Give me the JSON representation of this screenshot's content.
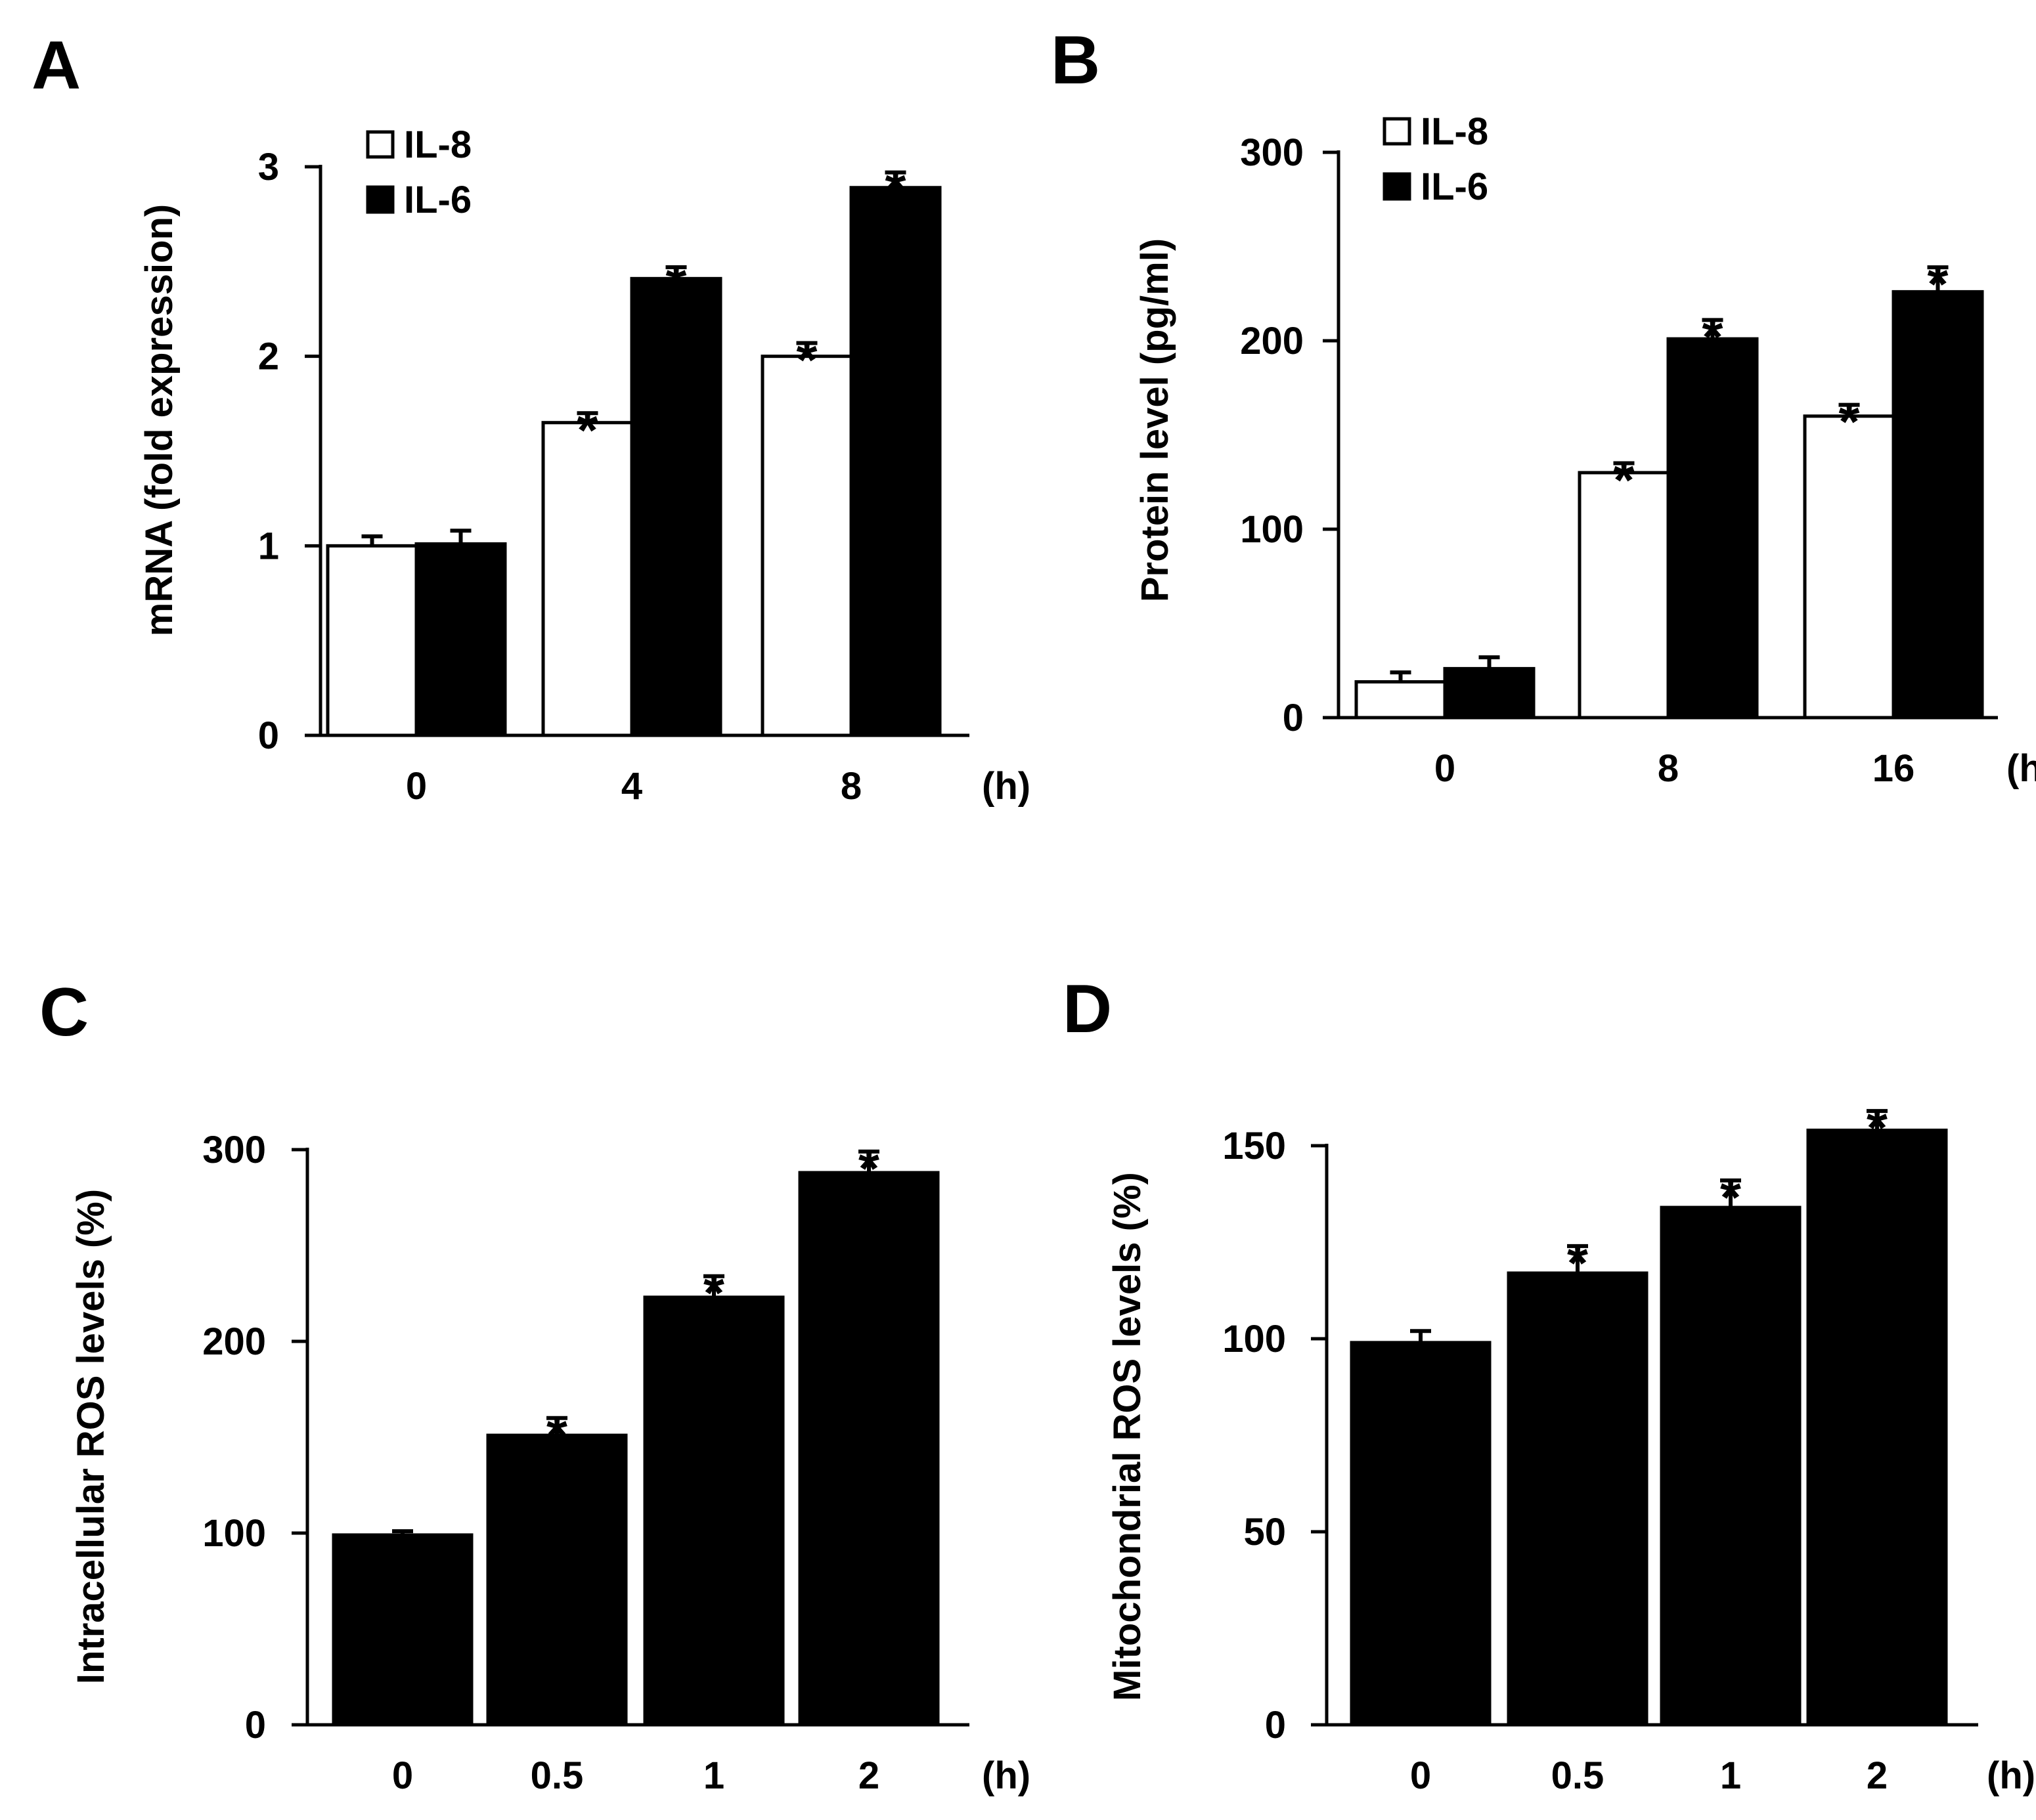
{
  "colors": {
    "series_open": "#ffffff",
    "series_filled": "#000000",
    "axis": "#000000"
  },
  "chart_data": [
    {
      "panel": "A",
      "type": "bar",
      "ylabel": "mRNA (fold expression)",
      "xunit": "(h)",
      "categories": [
        "0",
        "4",
        "8"
      ],
      "ylim": [
        0,
        3
      ],
      "yticks": [
        0,
        1,
        2,
        3
      ],
      "legend_position": "top-left",
      "series": [
        {
          "name": "IL-8",
          "fill": "white",
          "values": [
            1.0,
            1.65,
            2.0
          ],
          "errors": [
            0.05,
            0.05,
            0.07
          ],
          "sig": [
            "",
            "*",
            "*"
          ]
        },
        {
          "name": "IL-6",
          "fill": "black",
          "values": [
            1.01,
            2.41,
            2.89
          ],
          "errors": [
            0.07,
            0.06,
            0.08
          ],
          "sig": [
            "",
            "*",
            "*"
          ]
        }
      ]
    },
    {
      "panel": "B",
      "type": "bar",
      "ylabel": "Protein level (pg/ml)",
      "xunit": "(h)",
      "categories": [
        "0",
        "8",
        "16"
      ],
      "ylim": [
        0,
        300
      ],
      "yticks": [
        0,
        100,
        200,
        300
      ],
      "legend_position": "top-left",
      "series": [
        {
          "name": "IL-8",
          "fill": "white",
          "values": [
            19,
            130,
            160
          ],
          "errors": [
            5,
            5,
            6
          ],
          "sig": [
            "",
            "*",
            "*"
          ]
        },
        {
          "name": "IL-6",
          "fill": "black",
          "values": [
            26,
            201,
            226
          ],
          "errors": [
            6,
            10,
            13
          ],
          "sig": [
            "",
            "*",
            "*"
          ]
        }
      ]
    },
    {
      "panel": "C",
      "type": "bar",
      "ylabel": "Intracellular ROS levels (%)",
      "xunit": "(h)",
      "categories": [
        "0",
        "0.5",
        "1",
        "2"
      ],
      "ylim": [
        0,
        300
      ],
      "yticks": [
        0,
        100,
        200,
        300
      ],
      "series": [
        {
          "name": "",
          "fill": "black",
          "values": [
            99,
            151,
            223,
            288
          ],
          "errors": [
            2,
            9,
            11,
            11
          ],
          "sig": [
            "",
            "*",
            "*",
            "*"
          ]
        }
      ]
    },
    {
      "panel": "D",
      "type": "bar",
      "ylabel": "Mitochondrial ROS levels (%)",
      "xunit": "(h)",
      "categories": [
        "0",
        "0.5",
        "1",
        "2"
      ],
      "ylim": [
        0,
        150
      ],
      "yticks": [
        0,
        50,
        100,
        150
      ],
      "series": [
        {
          "name": "",
          "fill": "black",
          "values": [
            99,
            117,
            134,
            154
          ],
          "errors": [
            3,
            7,
            7,
            5
          ],
          "sig": [
            "",
            "*",
            "*",
            "*"
          ]
        }
      ]
    }
  ]
}
